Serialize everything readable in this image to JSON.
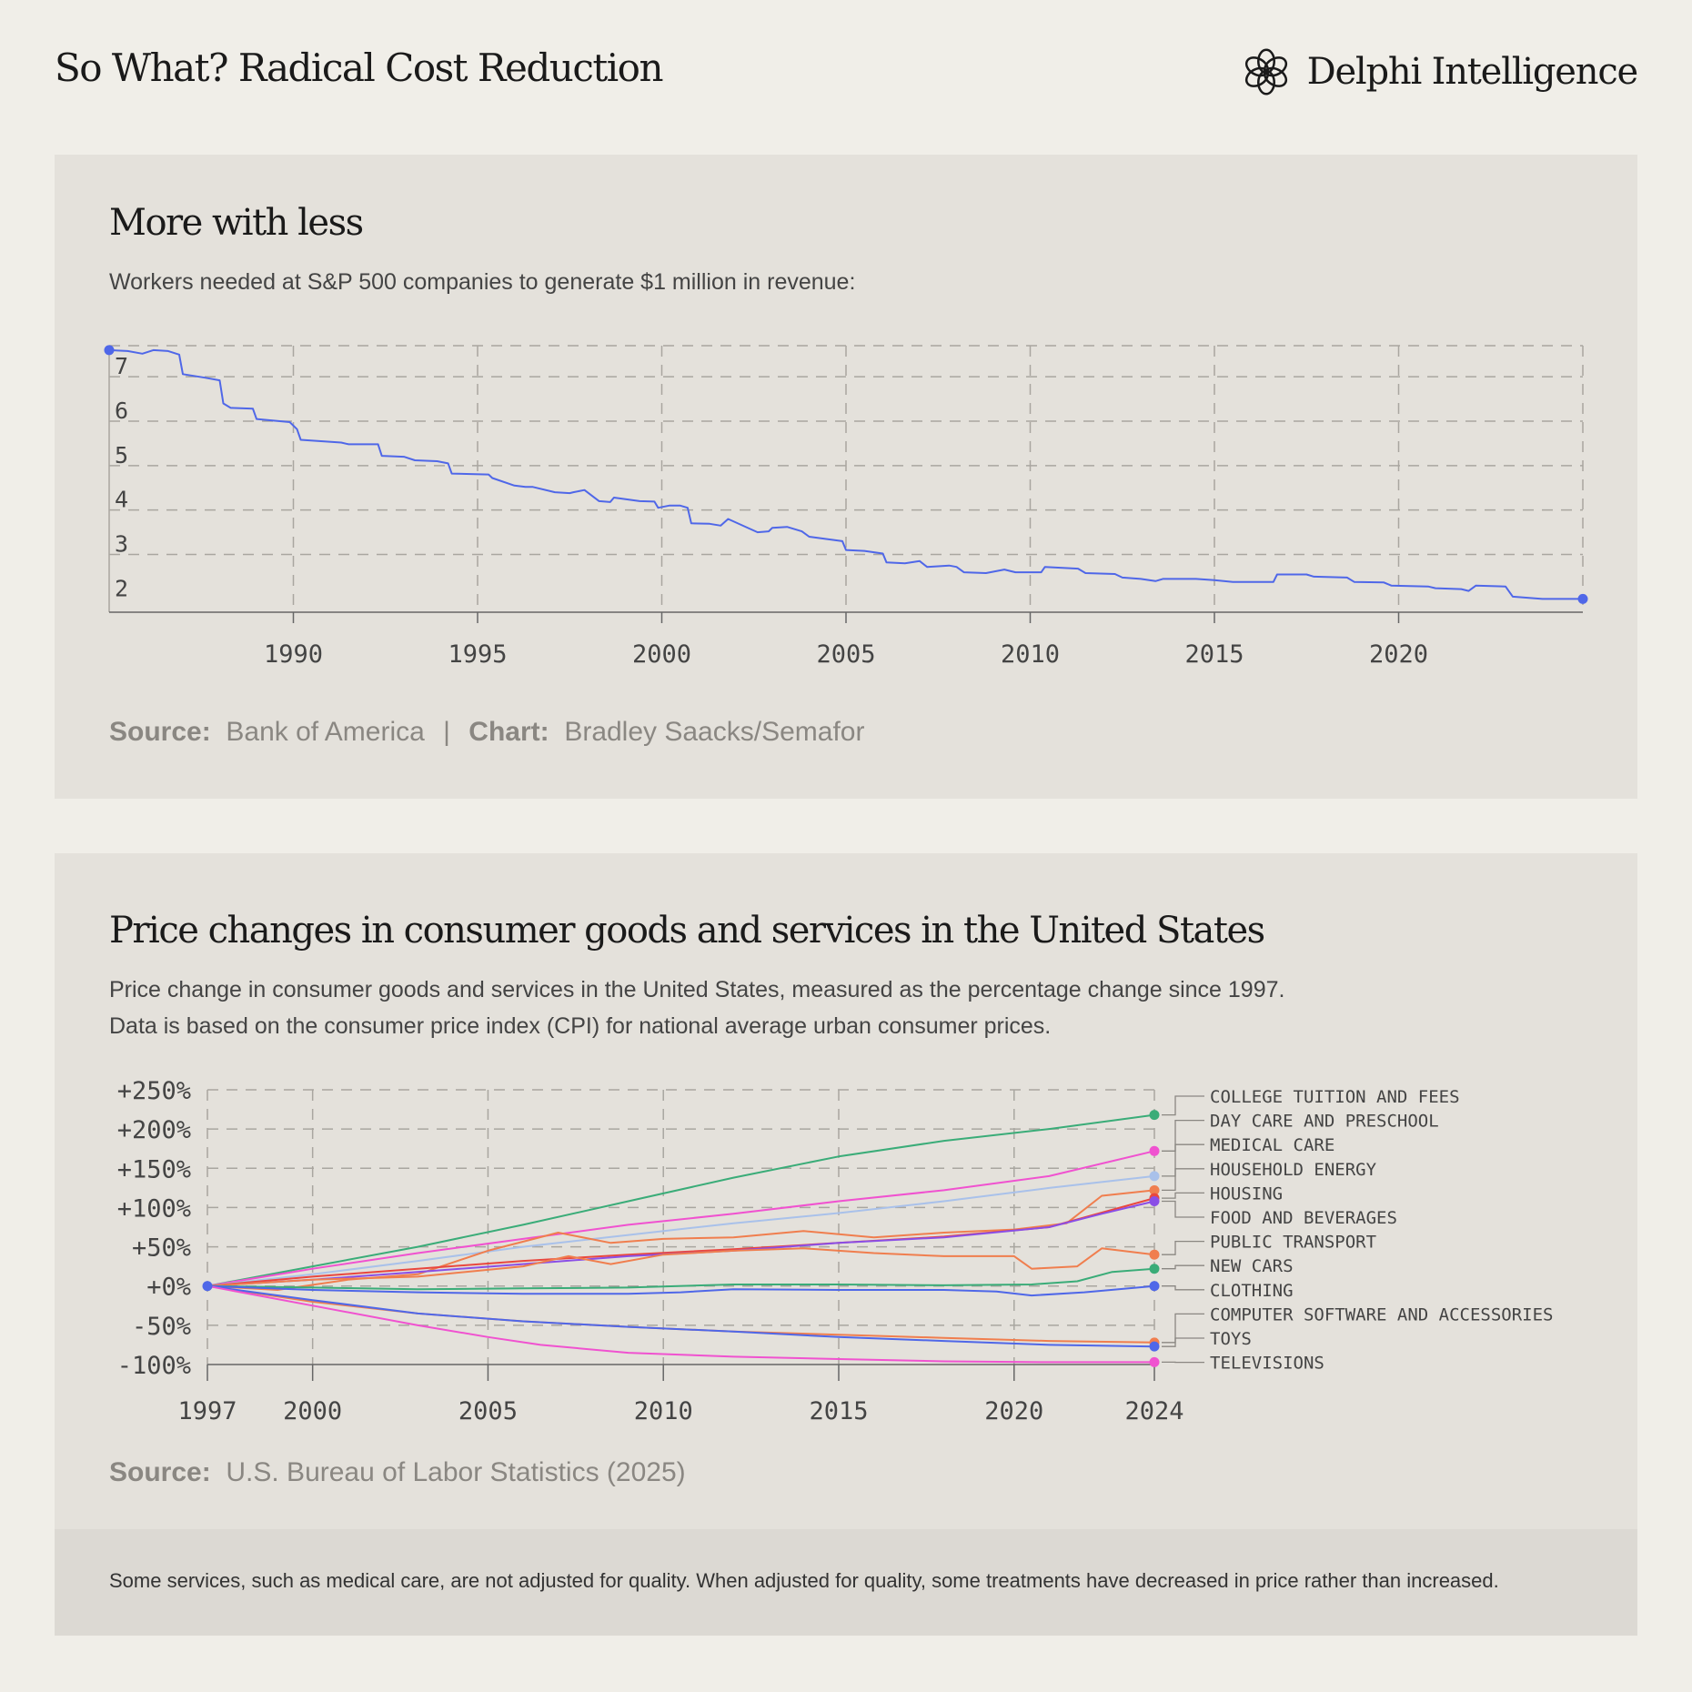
{
  "header": {
    "title": "So What? Radical Cost Reduction",
    "brand_name": "Delphi Intelligence",
    "brand_logo_icon": "delphi-knot-logo"
  },
  "panel1": {
    "title": "More with less",
    "subtitle": "Workers needed at S&P 500 companies to generate $1 million in revenue:",
    "source_label": "Source:",
    "source_value": "Bank of America",
    "separator": "|",
    "chart_label": "Chart:",
    "chart_value": "Bradley Saacks/Semafor"
  },
  "panel2": {
    "title": "Price changes in consumer goods and services in the United States",
    "subtitle_line1": "Price change in consumer goods and services in the United States, measured as the percentage change since 1997.",
    "subtitle_line2": "Data is based on the consumer price index (CPI) for national average urban consumer prices.",
    "source_label": "Source:",
    "source_value": "U.S. Bureau of Labor Statistics (2025)",
    "footnote": "Some services, such as medical care, are not adjusted for quality. When adjusted for quality, some treatments have decreased in price rather than increased."
  },
  "chart_data": [
    {
      "type": "line",
      "title": "More with less",
      "xlim": [
        1985,
        2025
      ],
      "ylim": [
        1.7,
        7.7
      ],
      "x_ticks": [
        1990,
        1995,
        2000,
        2005,
        2010,
        2015,
        2020
      ],
      "y_ticks": [
        2,
        3,
        4,
        5,
        6,
        7
      ],
      "grid": true,
      "line_color": "#4f67e8",
      "series": [
        {
          "x": [
            1985.0,
            1985.5,
            1985.9,
            1986.2,
            1986.6,
            1986.9,
            1987.0,
            1987.6,
            1988.0,
            1988.1,
            1988.3,
            1988.9,
            1989.0,
            1989.9,
            1990.1,
            1990.2,
            1991.3,
            1991.5,
            1992.3,
            1992.4,
            1993.0,
            1993.3,
            1993.9,
            1994.2,
            1994.3,
            1995.3,
            1995.4,
            1996.0,
            1996.3,
            1996.5,
            1997.1,
            1997.5,
            1997.6,
            1997.9,
            1998.3,
            1998.6,
            1998.7,
            1999.4,
            1999.8,
            1999.9,
            2000.2,
            2000.5,
            2000.7,
            2000.8,
            2001.3,
            2001.6,
            2001.8,
            2002.6,
            2002.9,
            2003.0,
            2003.4,
            2003.8,
            2004.0,
            2004.9,
            2005.0,
            2005.5,
            2006.0,
            2006.1,
            2006.6,
            2007.0,
            2007.2,
            2007.8,
            2008.0,
            2008.2,
            2008.8,
            2009.3,
            2009.6,
            2010.3,
            2010.4,
            2011.3,
            2011.5,
            2012.3,
            2012.5,
            2013.0,
            2013.4,
            2013.6,
            2014.5,
            2015.0,
            2015.5,
            2016.0,
            2016.6,
            2016.7,
            2017.5,
            2017.7,
            2018.6,
            2018.8,
            2019.6,
            2019.8,
            2020.8,
            2021.0,
            2021.7,
            2021.9,
            2022.1,
            2022.9,
            2023.1,
            2023.9,
            2025.0
          ],
          "y": [
            7.6,
            7.58,
            7.52,
            7.6,
            7.58,
            7.5,
            7.06,
            6.98,
            6.92,
            6.4,
            6.3,
            6.28,
            6.05,
            5.98,
            5.82,
            5.58,
            5.52,
            5.48,
            5.48,
            5.22,
            5.2,
            5.12,
            5.1,
            5.05,
            4.82,
            4.8,
            4.72,
            4.55,
            4.52,
            4.52,
            4.4,
            4.38,
            4.4,
            4.45,
            4.2,
            4.18,
            4.28,
            4.2,
            4.19,
            4.05,
            4.1,
            4.1,
            4.05,
            3.7,
            3.69,
            3.65,
            3.8,
            3.5,
            3.52,
            3.6,
            3.62,
            3.52,
            3.4,
            3.3,
            3.1,
            3.08,
            3.02,
            2.82,
            2.8,
            2.85,
            2.72,
            2.75,
            2.72,
            2.6,
            2.58,
            2.66,
            2.6,
            2.6,
            2.72,
            2.68,
            2.58,
            2.56,
            2.48,
            2.45,
            2.4,
            2.45,
            2.45,
            2.42,
            2.38,
            2.38,
            2.38,
            2.55,
            2.55,
            2.5,
            2.48,
            2.38,
            2.37,
            2.3,
            2.28,
            2.24,
            2.22,
            2.18,
            2.3,
            2.28,
            2.05,
            2.0,
            2.0
          ]
        }
      ]
    },
    {
      "type": "line",
      "title": "Price changes in consumer goods and services in the United States",
      "xlim": [
        1997,
        2024
      ],
      "ylim": [
        -100,
        250
      ],
      "x_ticks": [
        1997,
        2000,
        2005,
        2010,
        2015,
        2020,
        2024
      ],
      "y_ticks": [
        250,
        200,
        150,
        100,
        50,
        0,
        -50,
        -100
      ],
      "y_tick_labels": [
        "+250%",
        "+200%",
        "+150%",
        "+100%",
        "+50%",
        "+0%",
        "-50%",
        "-100%"
      ],
      "grid": true,
      "legend": "right",
      "series": [
        {
          "name": "COLLEGE TUITION AND FEES",
          "color": "#3aac78",
          "x": [
            1997,
            2000,
            2003,
            2006,
            2009,
            2012,
            2015,
            2018,
            2021,
            2024
          ],
          "y": [
            0,
            25,
            50,
            78,
            108,
            138,
            165,
            185,
            200,
            218
          ]
        },
        {
          "name": "DAY CARE AND PRESCHOOL",
          "color": "#f052d0",
          "x": [
            1997,
            2000,
            2003,
            2006,
            2009,
            2012,
            2015,
            2018,
            2021,
            2024
          ],
          "y": [
            0,
            22,
            42,
            60,
            78,
            92,
            108,
            122,
            140,
            172
          ]
        },
        {
          "name": "MEDICAL CARE",
          "color": "#a9c1ea",
          "x": [
            1997,
            2000,
            2003,
            2006,
            2009,
            2012,
            2015,
            2018,
            2021,
            2024
          ],
          "y": [
            0,
            15,
            32,
            50,
            65,
            80,
            93,
            108,
            125,
            140
          ]
        },
        {
          "name": "HOUSEHOLD ENERGY",
          "color": "#f07e4e",
          "x": [
            1997,
            1999,
            2001,
            2003,
            2005,
            2007,
            2008.5,
            2010,
            2012,
            2014,
            2016,
            2018,
            2020,
            2021.5,
            2022.5,
            2024
          ],
          "y": [
            0,
            -5,
            8,
            15,
            45,
            68,
            55,
            60,
            62,
            70,
            62,
            68,
            72,
            80,
            115,
            122
          ]
        },
        {
          "name": "HOUSING",
          "color": "#e9473e",
          "x": [
            1997,
            2000,
            2003,
            2006,
            2009,
            2012,
            2015,
            2018,
            2021,
            2024
          ],
          "y": [
            0,
            12,
            22,
            32,
            40,
            47,
            55,
            63,
            75,
            112
          ]
        },
        {
          "name": "FOOD AND BEVERAGES",
          "color": "#8a4ee6",
          "x": [
            1997,
            2000,
            2003,
            2006,
            2009,
            2012,
            2015,
            2018,
            2021,
            2022.5,
            2024
          ],
          "y": [
            0,
            8,
            18,
            28,
            38,
            45,
            55,
            62,
            75,
            92,
            108
          ]
        },
        {
          "name": "PUBLIC TRANSPORT",
          "color": "#f07e4e",
          "x": [
            1997,
            2000,
            2003,
            2006,
            2007.3,
            2008.5,
            2010,
            2012,
            2014,
            2016,
            2018,
            2020,
            2020.5,
            2021.8,
            2022.5,
            2024
          ],
          "y": [
            0,
            8,
            12,
            25,
            38,
            28,
            40,
            45,
            48,
            42,
            38,
            38,
            22,
            25,
            48,
            40
          ]
        },
        {
          "name": "NEW CARS",
          "color": "#3aac78",
          "x": [
            1997,
            2000,
            2003,
            2006,
            2009,
            2012,
            2015,
            2018,
            2020.5,
            2021.8,
            2022.8,
            2024
          ],
          "y": [
            0,
            -2,
            -4,
            -3,
            -2,
            2,
            2,
            1,
            2,
            6,
            18,
            22
          ]
        },
        {
          "name": "CLOTHING",
          "color": "#4f67e8",
          "x": [
            1997,
            2000,
            2003,
            2006,
            2009,
            2010.5,
            2012,
            2015,
            2018,
            2019.5,
            2020.5,
            2022,
            2024
          ],
          "y": [
            0,
            -5,
            -8,
            -10,
            -10,
            -8,
            -4,
            -5,
            -5,
            -7,
            -12,
            -8,
            0
          ]
        },
        {
          "name": "COMPUTER SOFTWARE AND ACCESSORIES",
          "color": "#f07e4e",
          "x": [
            1997,
            2000,
            2003,
            2006,
            2009,
            2012,
            2015,
            2018,
            2021,
            2024
          ],
          "y": [
            0,
            -20,
            -35,
            -45,
            -52,
            -58,
            -62,
            -66,
            -70,
            -72
          ]
        },
        {
          "name": "TOYS",
          "color": "#4f67e8",
          "x": [
            1997,
            2000,
            2003,
            2006,
            2009,
            2012,
            2015,
            2018,
            2021,
            2024
          ],
          "y": [
            0,
            -18,
            -35,
            -45,
            -52,
            -58,
            -65,
            -70,
            -75,
            -77
          ]
        },
        {
          "name": "TELEVISIONS",
          "color": "#f052d0",
          "x": [
            1997,
            2000,
            2003,
            2005,
            2006.5,
            2009,
            2012,
            2015,
            2018,
            2021,
            2024
          ],
          "y": [
            0,
            -25,
            -50,
            -65,
            -75,
            -85,
            -90,
            -93,
            -96,
            -97,
            -97
          ]
        }
      ]
    }
  ]
}
